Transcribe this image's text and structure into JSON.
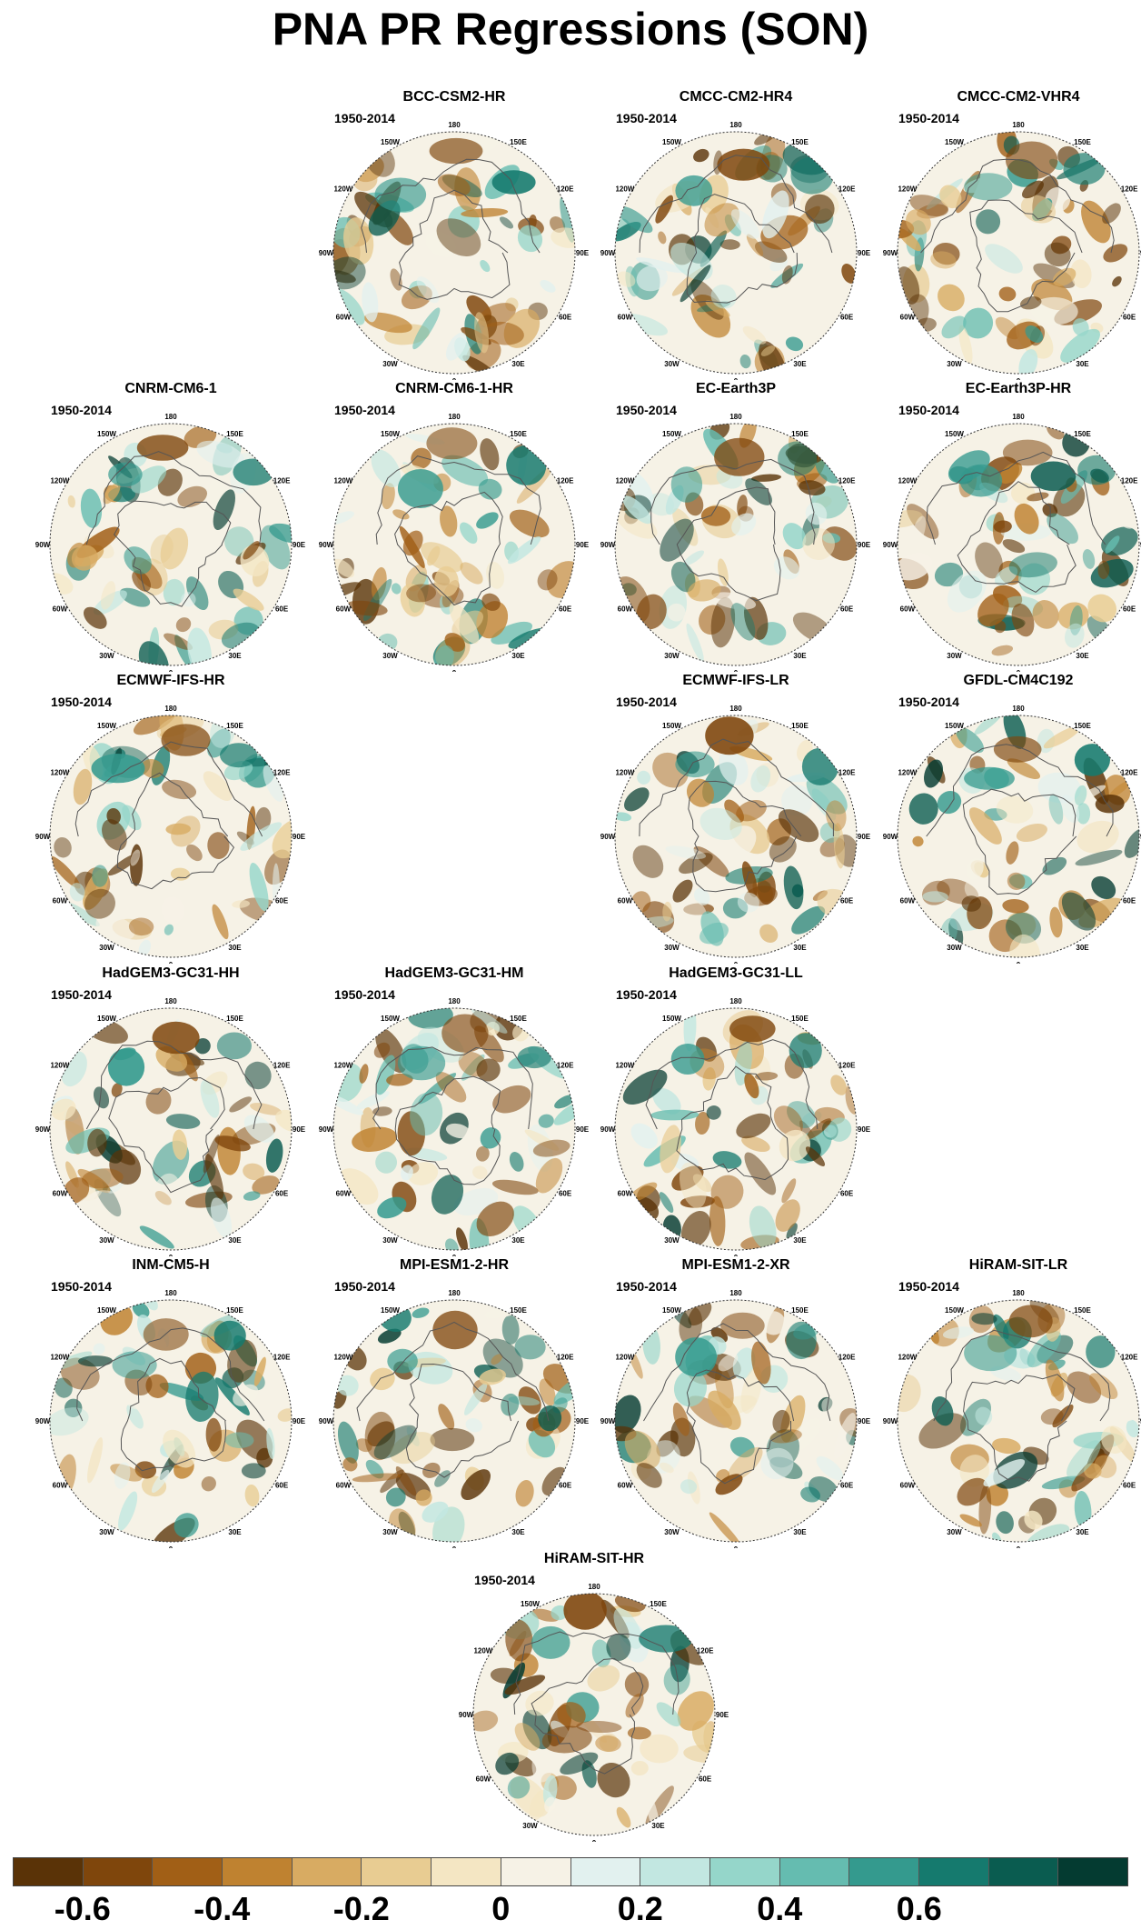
{
  "title": "PNA PR Regressions (SON)",
  "period": "1950-2014",
  "longitude_labels": [
    "180",
    "150E",
    "120E",
    "90E",
    "60E",
    "30E",
    "0",
    "30W",
    "60W",
    "90W",
    "120W",
    "150W"
  ],
  "panels": [
    {
      "name": "BCC-CSM2-HR"
    },
    {
      "name": "CMCC-CM2-HR4"
    },
    {
      "name": "CMCC-CM2-VHR4"
    },
    {
      "name": "CNRM-CM6-1"
    },
    {
      "name": "CNRM-CM6-1-HR"
    },
    {
      "name": "EC-Earth3P"
    },
    {
      "name": "EC-Earth3P-HR"
    },
    {
      "name": "ECMWF-IFS-HR"
    },
    {
      "name": "ECMWF-IFS-LR"
    },
    {
      "name": "GFDL-CM4C192"
    },
    {
      "name": "HadGEM3-GC31-HH"
    },
    {
      "name": "HadGEM3-GC31-HM"
    },
    {
      "name": "HadGEM3-GC31-LL"
    },
    {
      "name": "INM-CM5-H"
    },
    {
      "name": "MPI-ESM1-2-HR"
    },
    {
      "name": "MPI-ESM1-2-XR"
    },
    {
      "name": "HiRAM-SIT-LR"
    },
    {
      "name": "HiRAM-SIT-HR"
    }
  ],
  "colorbar": {
    "colors": [
      "#5a3307",
      "#7f460c",
      "#a15f16",
      "#bf8230",
      "#d8ab62",
      "#e8cc92",
      "#f4e6c3",
      "#f6f2e6",
      "#e2f1ef",
      "#c2e7e1",
      "#95d6ca",
      "#65bcb0",
      "#349a8e",
      "#157a6e",
      "#0a5c50",
      "#043b31"
    ],
    "labels": [
      "-0.6",
      "-0.4",
      "-0.2",
      "0",
      "0.2",
      "0.4",
      "0.6"
    ]
  }
}
